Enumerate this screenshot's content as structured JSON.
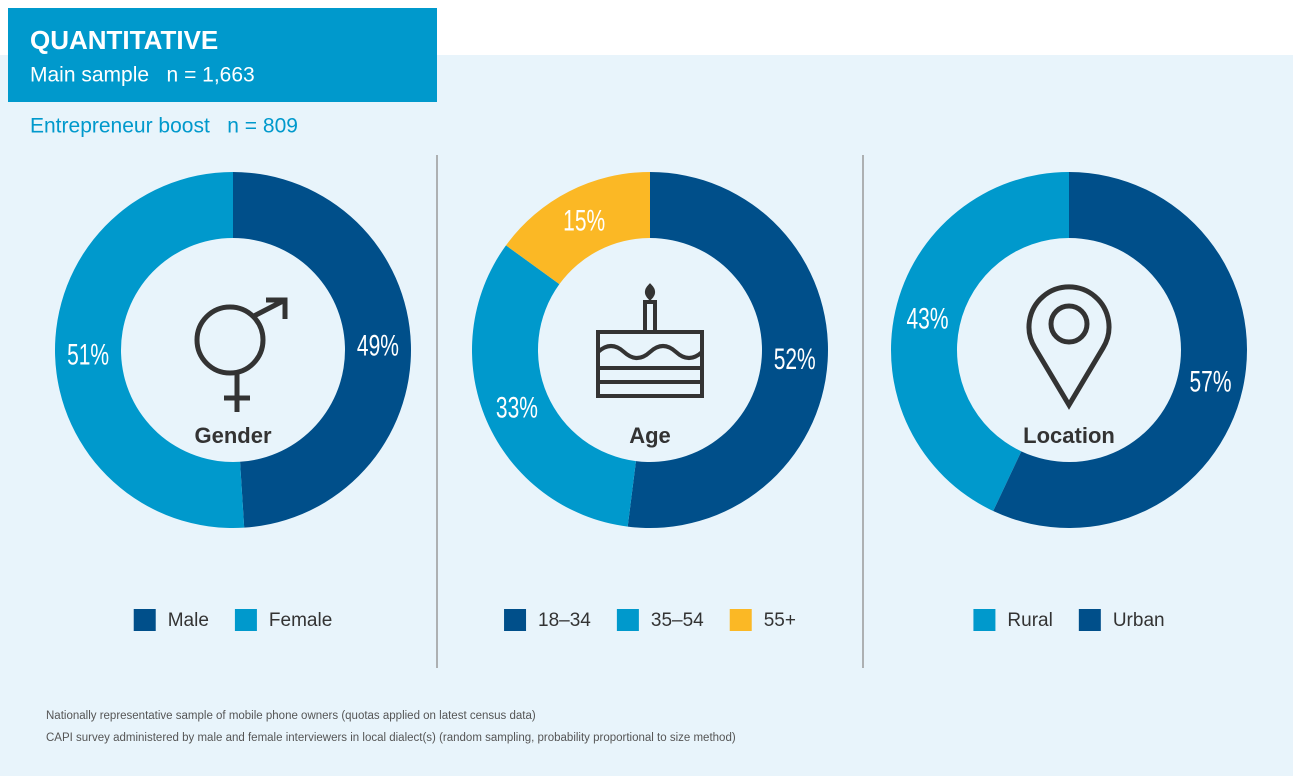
{
  "header": {
    "title": "QUANTITATIVE",
    "main_sample": "Main sample   n = 1,663",
    "boost": "Entrepreneur boost   n = 809"
  },
  "chart_data": [
    {
      "type": "donut",
      "title": "Gender",
      "categories": [
        "Male",
        "Female"
      ],
      "values": [
        49,
        51
      ],
      "value_labels": [
        "49%",
        "51%"
      ],
      "colors": [
        "#004f8a",
        "#0099cc"
      ],
      "counterclockwise": false
    },
    {
      "type": "donut",
      "title": "Age",
      "categories": [
        "18–34",
        "35–54",
        "55+"
      ],
      "values": [
        52,
        33,
        15
      ],
      "value_labels": [
        "52%",
        "33%",
        "15%"
      ],
      "colors": [
        "#004f8a",
        "#0099cc",
        "#fbb825"
      ],
      "counterclockwise": false
    },
    {
      "type": "donut",
      "title": "Location",
      "categories": [
        "Rural",
        "Urban"
      ],
      "values": [
        43,
        57
      ],
      "value_labels": [
        "43%",
        "57%"
      ],
      "colors": [
        "#0099cc",
        "#004f8a"
      ],
      "counterclockwise": true
    }
  ],
  "footnotes": [
    "Nationally representative sample of mobile phone owners (quotas applied on latest census data)",
    "CAPI survey administered by male and female interviewers in local dialect(s) (random sampling, probability proportional to size method)"
  ]
}
